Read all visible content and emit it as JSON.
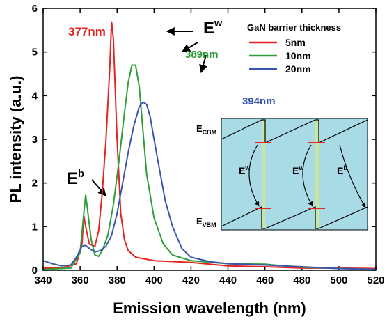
{
  "chart_data": {
    "type": "line",
    "xlabel": "Emission wavelength (nm)",
    "ylabel": "PL intensity (a.u.)",
    "xlim": [
      340,
      520
    ],
    "ylim": [
      0,
      6
    ],
    "xticks": [
      340,
      360,
      380,
      400,
      420,
      440,
      460,
      480,
      500,
      520
    ],
    "yticks": [
      0,
      1,
      2,
      3,
      4,
      5,
      6
    ],
    "legend_title": "GaN barrier thickness",
    "legend_position": "upper right",
    "series": [
      {
        "name": "5nm",
        "color": "#e8231f",
        "x": [
          340,
          350,
          358,
          361,
          362,
          363,
          365,
          368,
          370,
          372,
          374,
          376,
          377,
          378,
          380,
          382,
          384,
          386,
          390,
          400,
          420,
          440,
          460,
          480,
          500,
          520
        ],
        "values": [
          0.05,
          0.05,
          0.15,
          0.6,
          1.25,
          1.0,
          0.6,
          0.55,
          0.9,
          1.8,
          3.0,
          4.6,
          5.7,
          5.3,
          3.0,
          1.3,
          0.7,
          0.45,
          0.3,
          0.22,
          0.18,
          0.1,
          0.08,
          0.05,
          0.05,
          0.04
        ]
      },
      {
        "name": "10nm",
        "color": "#2e9e3a",
        "x": [
          340,
          355,
          360,
          362,
          363,
          364,
          366,
          368,
          370,
          372,
          375,
          378,
          381,
          384,
          386,
          388,
          390,
          392,
          394,
          396,
          400,
          405,
          410,
          420,
          440,
          460,
          470,
          480,
          500,
          520
        ],
        "values": [
          0.02,
          0.05,
          0.4,
          1.3,
          1.73,
          1.4,
          0.7,
          0.35,
          0.32,
          0.45,
          0.8,
          1.5,
          2.5,
          3.6,
          4.3,
          4.7,
          4.7,
          4.2,
          3.2,
          2.2,
          1.2,
          0.6,
          0.35,
          0.22,
          0.15,
          0.14,
          0.1,
          0.07,
          0.04,
          0.02
        ]
      },
      {
        "name": "20nm",
        "color": "#3a55b0",
        "x": [
          340,
          345,
          350,
          355,
          358,
          361,
          363,
          365,
          368,
          371,
          374,
          377,
          380,
          383,
          386,
          389,
          392,
          394,
          396,
          398,
          400,
          403,
          406,
          410,
          415,
          420,
          430,
          440,
          460,
          480,
          500,
          520
        ],
        "values": [
          0.22,
          0.15,
          0.1,
          0.12,
          0.3,
          0.55,
          0.57,
          0.5,
          0.42,
          0.45,
          0.55,
          0.8,
          1.3,
          2.0,
          2.7,
          3.3,
          3.75,
          3.85,
          3.8,
          3.5,
          3.0,
          2.3,
          1.6,
          1.0,
          0.5,
          0.3,
          0.2,
          0.15,
          0.12,
          0.08,
          0.04,
          0.02
        ]
      }
    ],
    "annotations": [
      {
        "text": "377nm",
        "color": "#e8231f"
      },
      {
        "text": "389nm",
        "color": "#2e9e3a"
      },
      {
        "text": "394nm",
        "color": "#3a55b0"
      },
      {
        "text": "E",
        "sup": "w"
      },
      {
        "text": "E",
        "sup": "b"
      }
    ],
    "inset": {
      "cbm": {
        "text": "E",
        "sub": "CBM"
      },
      "vbm": {
        "text": "E",
        "sub": "VBM"
      },
      "labels": [
        {
          "text": "E",
          "sup": "w"
        },
        {
          "text": "E",
          "sup": "w"
        },
        {
          "text": "E",
          "sup": "b"
        }
      ]
    }
  }
}
